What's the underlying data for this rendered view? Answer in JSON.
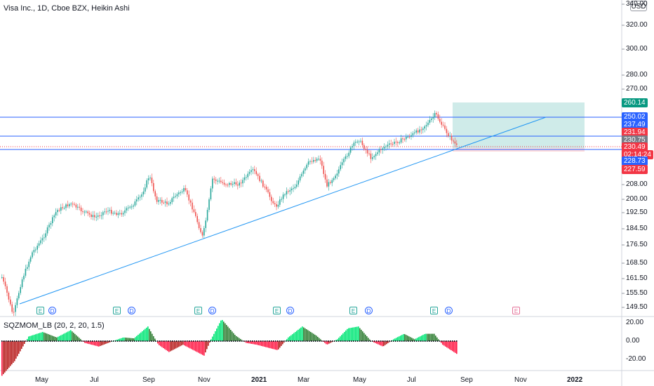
{
  "legend": {
    "title": "Visa Inc., 1D, Cboe BZX, Heikin Ashi",
    "indicator": "SQZMOM_LB (20, 2, 20, 1.5)"
  },
  "currency_button": "USD",
  "price_axis_ticks": [
    "340.00",
    "320.00",
    "300.00",
    "280.00",
    "270.00",
    "208.00",
    "200.00",
    "192.50",
    "184.50",
    "176.50",
    "168.50",
    "161.50",
    "155.50",
    "149.50"
  ],
  "price_labels": [
    {
      "text": "260.14",
      "color": "#089981"
    },
    {
      "text": "250.02",
      "color": "#2962ff"
    },
    {
      "text": "237.49",
      "color": "#2962ff"
    },
    {
      "text": "231.94",
      "color": "#f23645"
    },
    {
      "text": "230.75",
      "color": "#787b86"
    },
    {
      "text": "230.49",
      "color": "#f23645"
    },
    {
      "text": "02:14:24",
      "color": "#f23645"
    },
    {
      "text": "228.73",
      "color": "#2962ff"
    },
    {
      "text": "227.59",
      "color": "#f23645"
    }
  ],
  "osc_axis_ticks": [
    "20.00",
    "0.00",
    "-20.00"
  ],
  "time_axis": [
    {
      "label": "May",
      "bold": false
    },
    {
      "label": "Jul",
      "bold": false
    },
    {
      "label": "Sep",
      "bold": false
    },
    {
      "label": "Nov",
      "bold": false
    },
    {
      "label": "2021",
      "bold": true
    },
    {
      "label": "Mar",
      "bold": false
    },
    {
      "label": "May",
      "bold": false
    },
    {
      "label": "Jul",
      "bold": false
    },
    {
      "label": "Sep",
      "bold": false
    },
    {
      "label": "Nov",
      "bold": false
    },
    {
      "label": "2022",
      "bold": true
    }
  ],
  "events": [
    "E",
    "D",
    "E",
    "D",
    "E",
    "D",
    "E",
    "D",
    "E",
    "D",
    "E",
    "D",
    "E"
  ],
  "colors": {
    "up": "#26a69a",
    "down": "#ef5350",
    "hline": "#2962ff",
    "trend": "#2196f3",
    "target_zone": "rgba(38,166,154,0.22)",
    "stop_zone": "rgba(242,54,69,0.18)"
  }
}
